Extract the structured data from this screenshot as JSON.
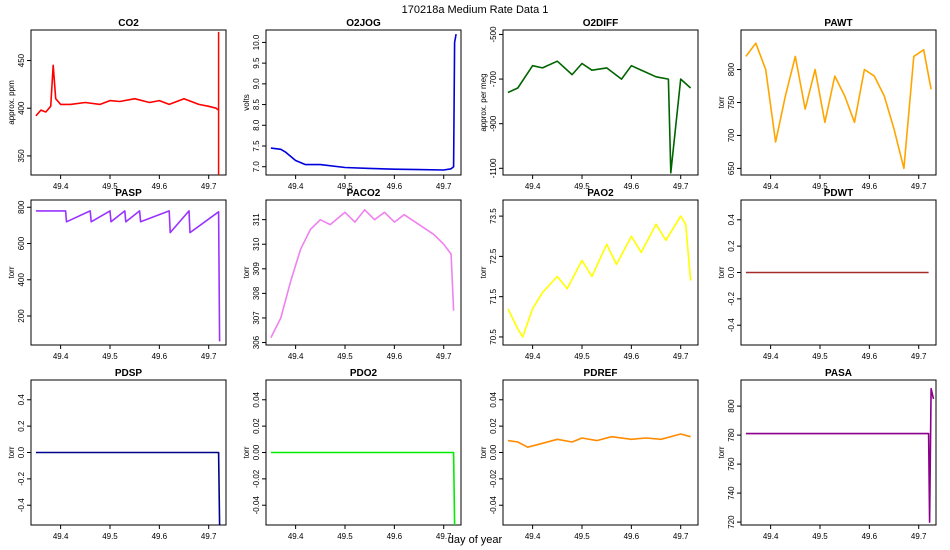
{
  "figure": {
    "title": "170218a   Medium Rate Data 1",
    "xlabel": "day of year"
  },
  "chart_data": [
    {
      "type": "line",
      "title": "CO2",
      "ylabel": "approx. ppm",
      "color": "#ff0000",
      "xlim": [
        49.34,
        49.735
      ],
      "ylim": [
        330,
        482
      ],
      "xticks": [
        "49.4",
        "49.5",
        "49.6",
        "49.7"
      ],
      "yticks": [
        "350",
        "400",
        "450"
      ],
      "series": [
        {
          "x": [
            49.35,
            49.36,
            49.37,
            49.38,
            49.385,
            49.39,
            49.4,
            49.42,
            49.45,
            49.48,
            49.5,
            49.52,
            49.55,
            49.58,
            49.6,
            49.62,
            49.65,
            49.68,
            49.7,
            49.715,
            49.72
          ],
          "y": [
            392,
            398,
            396,
            402,
            445,
            410,
            404,
            404,
            406,
            404,
            408,
            407,
            410,
            406,
            408,
            404,
            410,
            404,
            402,
            400,
            398
          ]
        }
      ],
      "spikes": [
        {
          "x": 49.72,
          "y0": 330,
          "y1": 480
        }
      ]
    },
    {
      "type": "line",
      "title": "O2JOG",
      "ylabel": "volts",
      "color": "#0000dd",
      "xlim": [
        49.34,
        49.735
      ],
      "ylim": [
        6.8,
        10.3
      ],
      "xticks": [
        "49.4",
        "49.5",
        "49.6",
        "49.7"
      ],
      "yticks": [
        "7.0",
        "7.5",
        "8.0",
        "8.5",
        "9.0",
        "9.5",
        "10.0"
      ],
      "series": [
        {
          "x": [
            49.35,
            49.37,
            49.38,
            49.4,
            49.42,
            49.45,
            49.5,
            49.55,
            49.6,
            49.65,
            49.7,
            49.715,
            49.72,
            49.722,
            49.725
          ],
          "y": [
            7.45,
            7.42,
            7.35,
            7.15,
            7.05,
            7.05,
            6.98,
            6.96,
            6.94,
            6.93,
            6.92,
            6.95,
            7.0,
            10.0,
            10.2
          ]
        }
      ]
    },
    {
      "type": "line",
      "title": "O2DIFF",
      "ylabel": "approx. per meg",
      "color": "#006400",
      "xlim": [
        49.34,
        49.735
      ],
      "ylim": [
        -1130,
        -480
      ],
      "xticks": [
        "49.4",
        "49.5",
        "49.6",
        "49.7"
      ],
      "yticks": [
        "-500",
        "-700",
        "-900",
        "-1100"
      ],
      "series": [
        {
          "x": [
            49.35,
            49.37,
            49.4,
            49.42,
            49.45,
            49.48,
            49.5,
            49.52,
            49.55,
            49.58,
            49.6,
            49.63,
            49.65,
            49.675,
            49.68,
            49.7,
            49.72
          ],
          "y": [
            -760,
            -740,
            -640,
            -650,
            -620,
            -680,
            -630,
            -660,
            -650,
            -700,
            -640,
            -670,
            -690,
            -700,
            -1120,
            -700,
            -740
          ]
        }
      ]
    },
    {
      "type": "line",
      "title": "PAWT",
      "ylabel": "torr",
      "color": "#ffa500",
      "xlim": [
        49.34,
        49.735
      ],
      "ylim": [
        640,
        860
      ],
      "xticks": [
        "49.4",
        "49.5",
        "49.6",
        "49.7"
      ],
      "yticks": [
        "650",
        "700",
        "750",
        "800"
      ],
      "series": [
        {
          "x": [
            49.35,
            49.37,
            49.39,
            49.41,
            49.43,
            49.45,
            49.47,
            49.49,
            49.51,
            49.53,
            49.55,
            49.57,
            49.59,
            49.61,
            49.63,
            49.65,
            49.67,
            49.69,
            49.71,
            49.725
          ],
          "y": [
            820,
            840,
            800,
            690,
            760,
            820,
            740,
            800,
            720,
            790,
            760,
            720,
            800,
            790,
            760,
            710,
            650,
            820,
            830,
            770
          ]
        }
      ]
    },
    {
      "type": "line",
      "title": "PASP",
      "ylabel": "torr",
      "color": "#9933ff",
      "xlim": [
        49.34,
        49.735
      ],
      "ylim": [
        40,
        840
      ],
      "xticks": [
        "49.4",
        "49.5",
        "49.6",
        "49.7"
      ],
      "yticks": [
        "200",
        "400",
        "600",
        "800"
      ],
      "series": [
        {
          "x": [
            49.35,
            49.41,
            49.412,
            49.46,
            49.462,
            49.5,
            49.502,
            49.53,
            49.532,
            49.56,
            49.562,
            49.62,
            49.622,
            49.66,
            49.662,
            49.72,
            49.722
          ],
          "y": [
            780,
            780,
            720,
            780,
            720,
            780,
            720,
            780,
            720,
            780,
            720,
            780,
            660,
            780,
            660,
            775,
            60
          ]
        }
      ]
    },
    {
      "type": "line",
      "title": "PACO2",
      "ylabel": "torr",
      "color": "#ee82ee",
      "xlim": [
        49.34,
        49.735
      ],
      "ylim": [
        305.9,
        311.8
      ],
      "xticks": [
        "49.4",
        "49.5",
        "49.6",
        "49.7"
      ],
      "yticks": [
        "306",
        "307",
        "308",
        "309",
        "310",
        "311"
      ],
      "series": [
        {
          "x": [
            49.35,
            49.37,
            49.39,
            49.41,
            49.43,
            49.45,
            49.47,
            49.5,
            49.52,
            49.54,
            49.56,
            49.58,
            49.6,
            49.62,
            49.65,
            49.68,
            49.7,
            49.715,
            49.72
          ],
          "y": [
            306.2,
            307.0,
            308.5,
            309.8,
            310.6,
            311.0,
            310.8,
            311.3,
            310.9,
            311.4,
            311.0,
            311.3,
            310.9,
            311.2,
            310.8,
            310.4,
            310.0,
            309.6,
            307.3
          ]
        }
      ]
    },
    {
      "type": "line",
      "title": "PAO2",
      "ylabel": "torr",
      "color": "#ffff00",
      "xlim": [
        49.34,
        49.735
      ],
      "ylim": [
        70.3,
        73.9
      ],
      "xticks": [
        "49.4",
        "49.5",
        "49.6",
        "49.7"
      ],
      "yticks": [
        "70.5",
        "71.5",
        "72.5",
        "73.5"
      ],
      "series": [
        {
          "x": [
            49.35,
            49.37,
            49.38,
            49.4,
            49.42,
            49.45,
            49.47,
            49.5,
            49.52,
            49.55,
            49.57,
            49.6,
            49.62,
            49.65,
            49.67,
            49.7,
            49.71,
            49.72
          ],
          "y": [
            71.2,
            70.7,
            70.5,
            71.2,
            71.6,
            72.0,
            71.7,
            72.4,
            72.0,
            72.8,
            72.3,
            73.0,
            72.6,
            73.3,
            72.9,
            73.5,
            73.3,
            71.9
          ]
        }
      ]
    },
    {
      "type": "line",
      "title": "PDWT",
      "ylabel": "torr",
      "color": "#a52a2a",
      "xlim": [
        49.34,
        49.735
      ],
      "ylim": [
        -0.55,
        0.55
      ],
      "xticks": [
        "49.4",
        "49.5",
        "49.6",
        "49.7"
      ],
      "yticks": [
        "-0.4",
        "-0.2",
        "0.0",
        "0.2",
        "0.4"
      ],
      "series": [
        {
          "x": [
            49.35,
            49.4,
            49.45,
            49.5,
            49.55,
            49.6,
            49.65,
            49.7,
            49.72
          ],
          "y": [
            0.0,
            0.0,
            0.0,
            0.0,
            0.0,
            0.0,
            0.0,
            0.0,
            0.0
          ]
        }
      ]
    },
    {
      "type": "line",
      "title": "PDSP",
      "ylabel": "torr",
      "color": "#00008b",
      "xlim": [
        49.34,
        49.735
      ],
      "ylim": [
        -0.55,
        0.55
      ],
      "xticks": [
        "49.4",
        "49.5",
        "49.6",
        "49.7"
      ],
      "yticks": [
        "-0.4",
        "-0.2",
        "0.0",
        "0.2",
        "0.4"
      ],
      "series": [
        {
          "x": [
            49.35,
            49.4,
            49.45,
            49.5,
            49.55,
            49.6,
            49.65,
            49.7,
            49.72,
            49.722
          ],
          "y": [
            0.0,
            0.0,
            0.0,
            0.0,
            0.0,
            0.0,
            0.0,
            0.0,
            0.0,
            -0.55
          ]
        }
      ]
    },
    {
      "type": "line",
      "title": "PDO2",
      "ylabel": "torr",
      "color": "#00ee00",
      "xlim": [
        49.34,
        49.735
      ],
      "ylim": [
        -0.055,
        0.055
      ],
      "xticks": [
        "49.4",
        "49.5",
        "49.6",
        "49.7"
      ],
      "yticks": [
        "-0.04",
        "-0.02",
        "0.00",
        "0.02",
        "0.04"
      ],
      "series": [
        {
          "x": [
            49.35,
            49.4,
            49.45,
            49.5,
            49.55,
            49.6,
            49.65,
            49.7,
            49.72,
            49.722
          ],
          "y": [
            0.0,
            0.0,
            0.0,
            0.0,
            0.0,
            0.0,
            0.0,
            0.0,
            0.0,
            -0.055
          ]
        }
      ]
    },
    {
      "type": "line",
      "title": "PDREF",
      "ylabel": "torr",
      "color": "#ff8c00",
      "xlim": [
        49.34,
        49.735
      ],
      "ylim": [
        -0.055,
        0.055
      ],
      "xticks": [
        "49.4",
        "49.5",
        "49.6",
        "49.7"
      ],
      "yticks": [
        "-0.04",
        "-0.02",
        "0.00",
        "0.02",
        "0.04"
      ],
      "series": [
        {
          "x": [
            49.35,
            49.37,
            49.39,
            49.42,
            49.45,
            49.48,
            49.5,
            49.53,
            49.56,
            49.6,
            49.63,
            49.66,
            49.7,
            49.72
          ],
          "y": [
            0.009,
            0.008,
            0.004,
            0.007,
            0.01,
            0.008,
            0.011,
            0.009,
            0.012,
            0.01,
            0.011,
            0.01,
            0.014,
            0.012
          ]
        }
      ]
    },
    {
      "type": "line",
      "title": "PASA",
      "ylabel": "torr",
      "color": "#8b008b",
      "xlim": [
        49.34,
        49.735
      ],
      "ylim": [
        718,
        818
      ],
      "xticks": [
        "49.4",
        "49.5",
        "49.6",
        "49.7"
      ],
      "yticks": [
        "720",
        "740",
        "760",
        "780",
        "800"
      ],
      "series": [
        {
          "x": [
            49.35,
            49.4,
            49.45,
            49.5,
            49.55,
            49.6,
            49.65,
            49.7,
            49.72,
            49.722,
            49.725,
            49.73
          ],
          "y": [
            781,
            781,
            781,
            781,
            781,
            781,
            781,
            781,
            781,
            720,
            812,
            805
          ]
        }
      ]
    }
  ]
}
